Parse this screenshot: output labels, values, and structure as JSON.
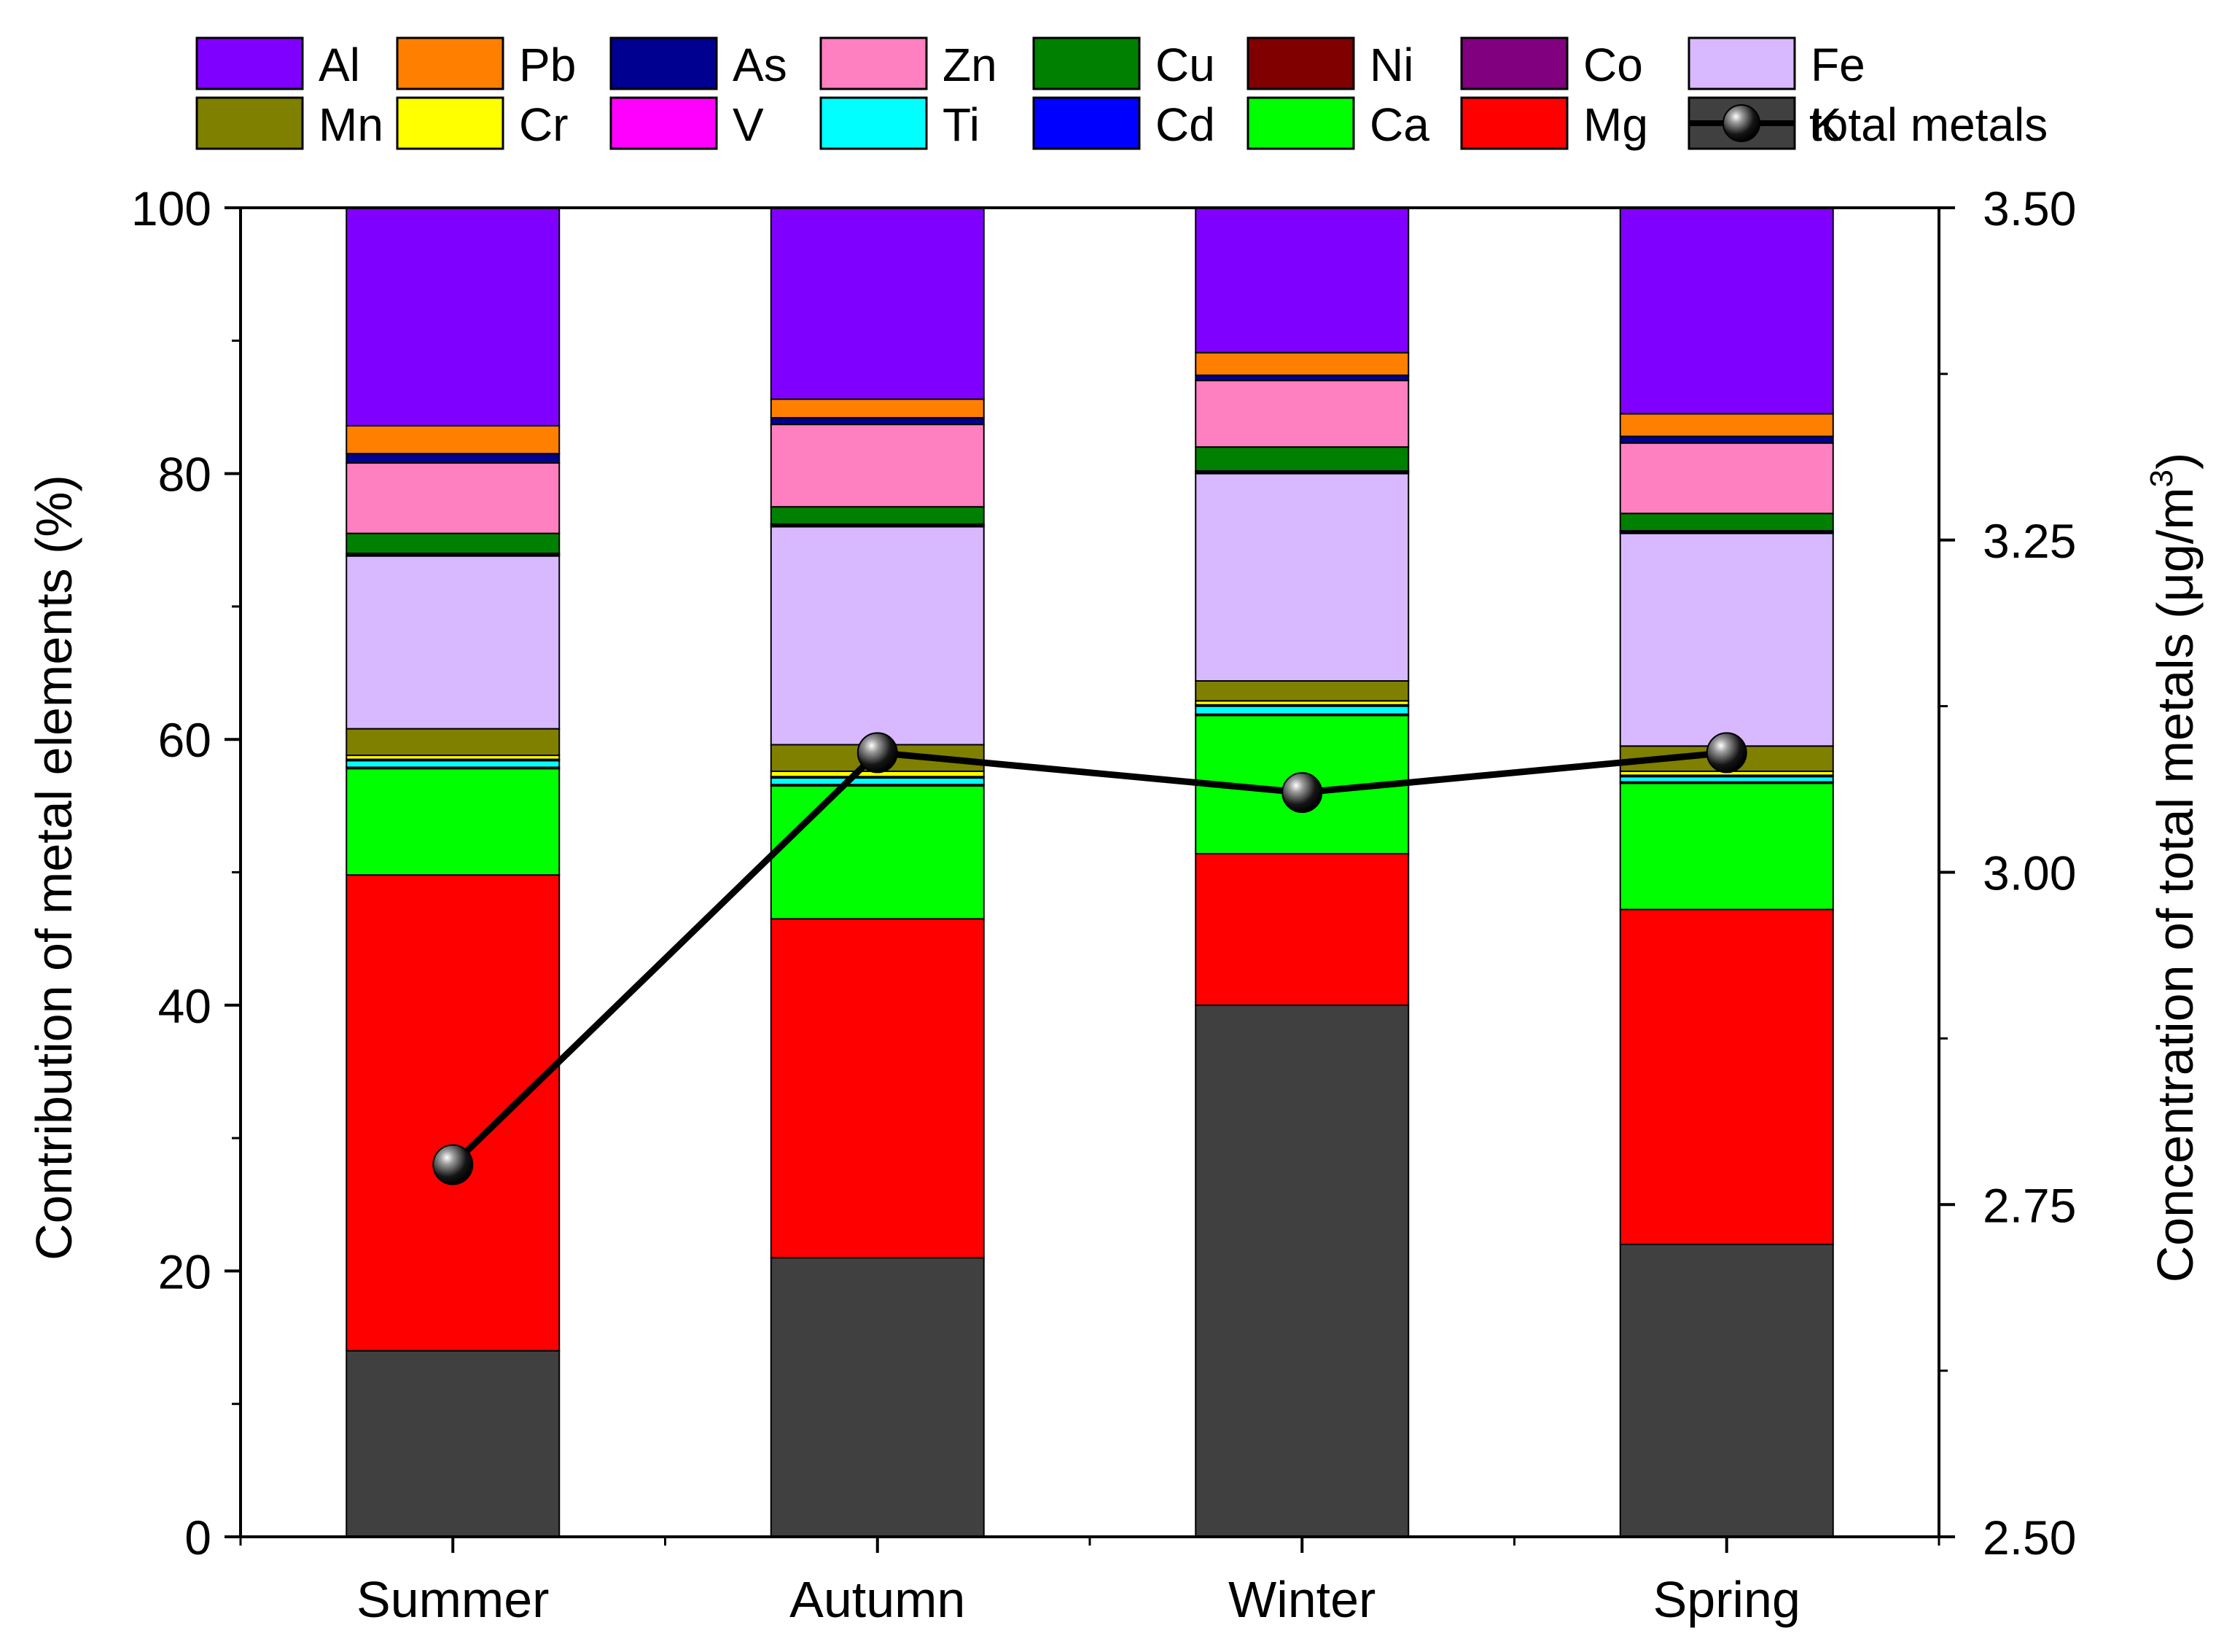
{
  "chart_data": {
    "type": "stacked-bar-with-line",
    "categories": [
      "Summer",
      "Autumn",
      "Winter",
      "Spring"
    ],
    "ylabel": "Contribution of metal elements (%)",
    "y2label": "Concentration of total metals (μg/m",
    "y2label_sup": "3",
    "y2label_close": ")",
    "ylim": [
      0,
      100
    ],
    "y2lim": [
      2.5,
      3.5
    ],
    "yticks": [
      "0",
      "20",
      "40",
      "60",
      "80",
      "100"
    ],
    "y2ticks": [
      "2.50",
      "2.75",
      "3.00",
      "3.25",
      "3.50"
    ],
    "series": [
      {
        "name": "K",
        "color": "#404040",
        "values": [
          14.0,
          21.0,
          40.0,
          22.0
        ]
      },
      {
        "name": "Mg",
        "color": "#ff0000",
        "values": [
          35.8,
          25.5,
          11.4,
          25.2
        ]
      },
      {
        "name": "Ca",
        "color": "#00ff00",
        "values": [
          8.0,
          10.0,
          10.4,
          9.5
        ]
      },
      {
        "name": "Cd",
        "color": "#0000ff",
        "values": [
          0.1,
          0.1,
          0.1,
          0.1
        ]
      },
      {
        "name": "Ti",
        "color": "#00ffff",
        "values": [
          0.5,
          0.5,
          0.6,
          0.4
        ]
      },
      {
        "name": "V",
        "color": "#ff00ff",
        "values": [
          0.1,
          0.1,
          0.1,
          0.1
        ]
      },
      {
        "name": "Cr",
        "color": "#ffff00",
        "values": [
          0.3,
          0.4,
          0.3,
          0.3
        ]
      },
      {
        "name": "Mn",
        "color": "#808000",
        "values": [
          2.0,
          2.0,
          1.5,
          1.9
        ]
      },
      {
        "name": "Fe",
        "color": "#d8b8ff",
        "values": [
          13.0,
          16.4,
          15.6,
          16.0
        ]
      },
      {
        "name": "Co",
        "color": "#800080",
        "values": [
          0.1,
          0.1,
          0.1,
          0.1
        ]
      },
      {
        "name": "Ni",
        "color": "#800000",
        "values": [
          0.1,
          0.1,
          0.1,
          0.1
        ]
      },
      {
        "name": "Cu",
        "color": "#008000",
        "values": [
          1.5,
          1.3,
          1.8,
          1.3
        ]
      },
      {
        "name": "Zn",
        "color": "#ff80c0",
        "values": [
          5.3,
          6.2,
          5.0,
          5.3
        ]
      },
      {
        "name": "As",
        "color": "#000090",
        "values": [
          0.7,
          0.5,
          0.4,
          0.5
        ]
      },
      {
        "name": "Pb",
        "color": "#ff8000",
        "values": [
          2.1,
          1.4,
          1.7,
          1.7
        ]
      },
      {
        "name": "Al",
        "color": "#8000ff",
        "values": [
          16.4,
          14.4,
          10.9,
          15.5
        ]
      }
    ],
    "legend": [
      {
        "name": "Al",
        "color": "#8000ff"
      },
      {
        "name": "Pb",
        "color": "#ff8000"
      },
      {
        "name": "As",
        "color": "#000090"
      },
      {
        "name": "Zn",
        "color": "#ff80c0"
      },
      {
        "name": "Cu",
        "color": "#008000"
      },
      {
        "name": "Ni",
        "color": "#800000"
      },
      {
        "name": "Co",
        "color": "#800080"
      },
      {
        "name": "Fe",
        "color": "#d8b8ff"
      },
      {
        "name": "Mn",
        "color": "#808000"
      },
      {
        "name": "Cr",
        "color": "#ffff00"
      },
      {
        "name": "V",
        "color": "#ff00ff"
      },
      {
        "name": "Ti",
        "color": "#00ffff"
      },
      {
        "name": "Cd",
        "color": "#0000ff"
      },
      {
        "name": "Ca",
        "color": "#00ff00"
      },
      {
        "name": "Mg",
        "color": "#ff0000"
      },
      {
        "name": "K",
        "color": "#404040"
      }
    ],
    "line": {
      "name": "total metals",
      "color": "#000000",
      "values": [
        2.78,
        3.09,
        3.06,
        3.09
      ]
    }
  }
}
